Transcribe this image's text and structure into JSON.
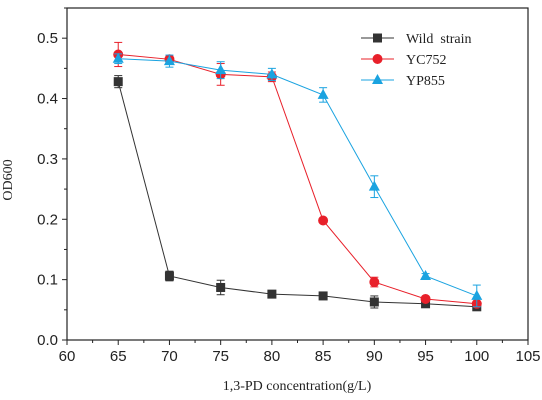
{
  "chart_data": {
    "type": "line",
    "xlabel": "1,3-PD concentration(g/L)",
    "ylabel": "OD600",
    "xlim": [
      60,
      105
    ],
    "ylim": [
      0.0,
      0.55
    ],
    "x_ticks": [
      60,
      65,
      70,
      75,
      80,
      85,
      90,
      95,
      100,
      105
    ],
    "x_tick_labels": [
      "60",
      "65",
      "70",
      "75",
      "80",
      "85",
      "90",
      "95",
      "100",
      "105"
    ],
    "y_ticks": [
      0.0,
      0.1,
      0.2,
      0.3,
      0.4,
      0.5
    ],
    "y_tick_labels": [
      "0.0",
      "0.1",
      "0.2",
      "0.3",
      "0.4",
      "0.5"
    ],
    "grid": false,
    "legend_position": "top-right",
    "x": [
      65,
      70,
      75,
      80,
      85,
      90,
      95,
      100
    ],
    "series": [
      {
        "name": "Wild  strain",
        "marker": "square",
        "color": "#333333",
        "values": [
          0.428,
          0.106,
          0.087,
          0.076,
          0.073,
          0.063,
          0.06,
          0.055
        ],
        "errors": [
          0.01,
          0.008,
          0.012,
          0.003,
          0.003,
          0.01,
          0.005,
          0.004
        ]
      },
      {
        "name": "YC752",
        "marker": "circle",
        "color": "#e8202a",
        "values": [
          0.473,
          0.465,
          0.44,
          0.436,
          0.198,
          0.096,
          0.068,
          0.06
        ],
        "errors": [
          0.02,
          0.005,
          0.018,
          0.008,
          0.003,
          0.008,
          0.004,
          0.004
        ]
      },
      {
        "name": "YP855",
        "marker": "triangle",
        "color": "#1aa3e0",
        "values": [
          0.466,
          0.462,
          0.447,
          0.44,
          0.406,
          0.254,
          0.106,
          0.073
        ],
        "errors": [
          0.008,
          0.01,
          0.014,
          0.01,
          0.012,
          0.018,
          0.004,
          0.018
        ]
      }
    ]
  }
}
